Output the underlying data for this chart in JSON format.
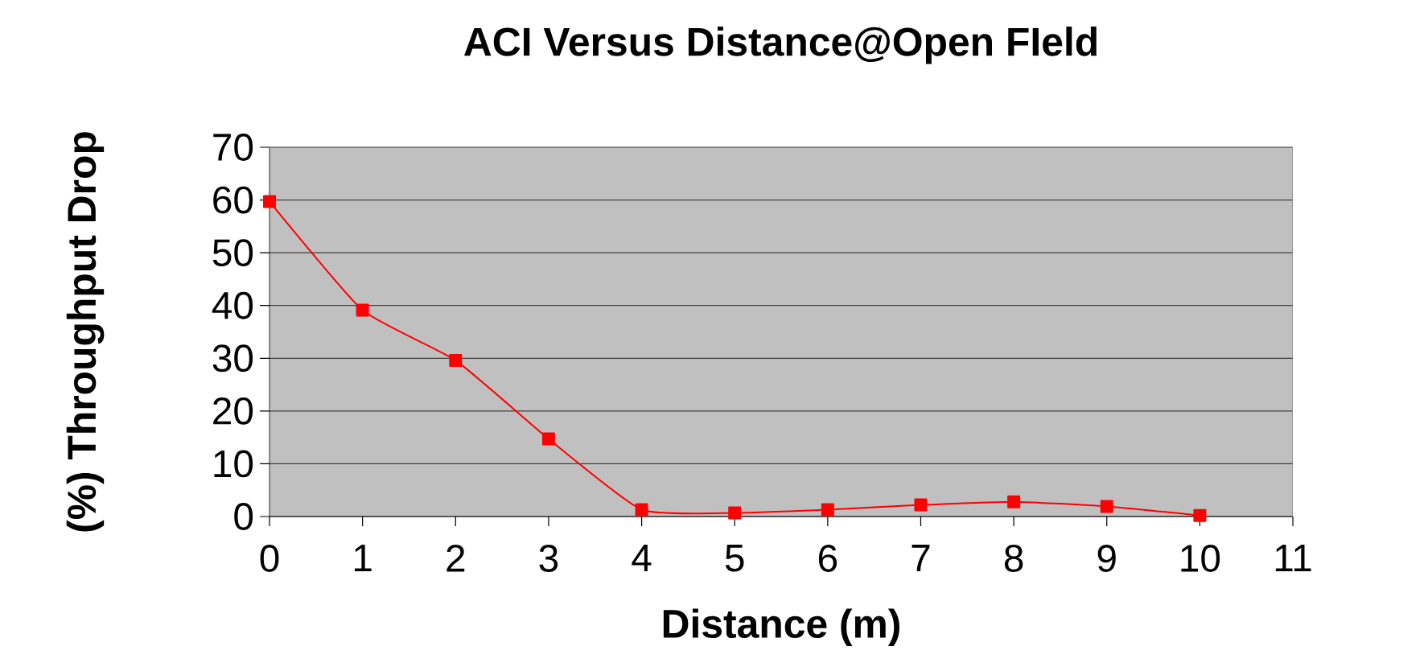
{
  "chart_data": {
    "type": "line",
    "title": "ACI Versus Distance@Open FIeld",
    "xlabel": "Distance (m)",
    "ylabel": "(%) Throughput Drop",
    "x": [
      0,
      1,
      2,
      3,
      4,
      5,
      6,
      7,
      8,
      9,
      10
    ],
    "series": [
      {
        "color": "#ff0000",
        "values": [
          59.7,
          39.1,
          29.6,
          14.7,
          1.3,
          0.7,
          1.3,
          2.2,
          2.8,
          1.9,
          0.2
        ]
      }
    ],
    "xlim": [
      0,
      11
    ],
    "ylim": [
      0,
      70
    ],
    "xticks": [
      0,
      1,
      2,
      3,
      4,
      5,
      6,
      7,
      8,
      9,
      10,
      11
    ],
    "yticks": [
      0,
      10,
      20,
      30,
      40,
      50,
      60,
      70
    ],
    "grid": "y",
    "marker": "square",
    "line_style": "solid"
  }
}
